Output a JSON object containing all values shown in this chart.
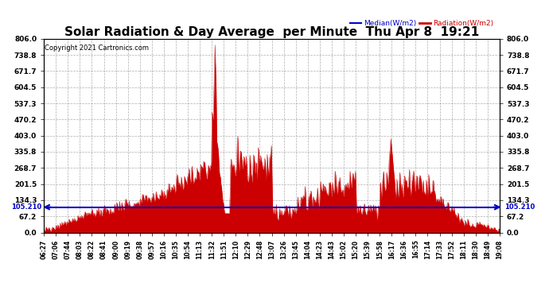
{
  "title": "Solar Radiation & Day Average  per Minute  Thu Apr 8  19:21",
  "copyright": "Copyright 2021 Cartronics.com",
  "legend_median": "Median(W/m2)",
  "legend_radiation": "Radiation(W/m2)",
  "median_value": 105.21,
  "ymax": 806.0,
  "ymin": 0.0,
  "yticks": [
    0.0,
    67.2,
    134.3,
    201.5,
    268.7,
    335.8,
    403.0,
    470.2,
    537.3,
    604.5,
    671.7,
    738.8,
    806.0
  ],
  "ytick_labels": [
    "0.0",
    "67.2",
    "134.3",
    "201.5",
    "268.7",
    "335.8",
    "403.0",
    "470.2",
    "537.3",
    "604.5",
    "671.7",
    "738.8",
    "806.0"
  ],
  "xtick_labels": [
    "06:27",
    "07:06",
    "07:44",
    "08:03",
    "08:22",
    "08:41",
    "09:00",
    "09:19",
    "09:38",
    "09:57",
    "10:16",
    "10:35",
    "10:54",
    "11:13",
    "11:32",
    "11:51",
    "12:10",
    "12:29",
    "12:48",
    "13:07",
    "13:26",
    "13:45",
    "14:04",
    "14:23",
    "14:43",
    "15:02",
    "15:20",
    "15:39",
    "15:58",
    "16:17",
    "16:36",
    "16:55",
    "17:14",
    "17:33",
    "17:52",
    "18:11",
    "18:30",
    "18:49",
    "19:08"
  ],
  "background_color": "#ffffff",
  "radiation_color": "#cc0000",
  "median_color": "#0000cc",
  "grid_color": "#999999",
  "title_color": "#000000",
  "title_fontsize": 11
}
